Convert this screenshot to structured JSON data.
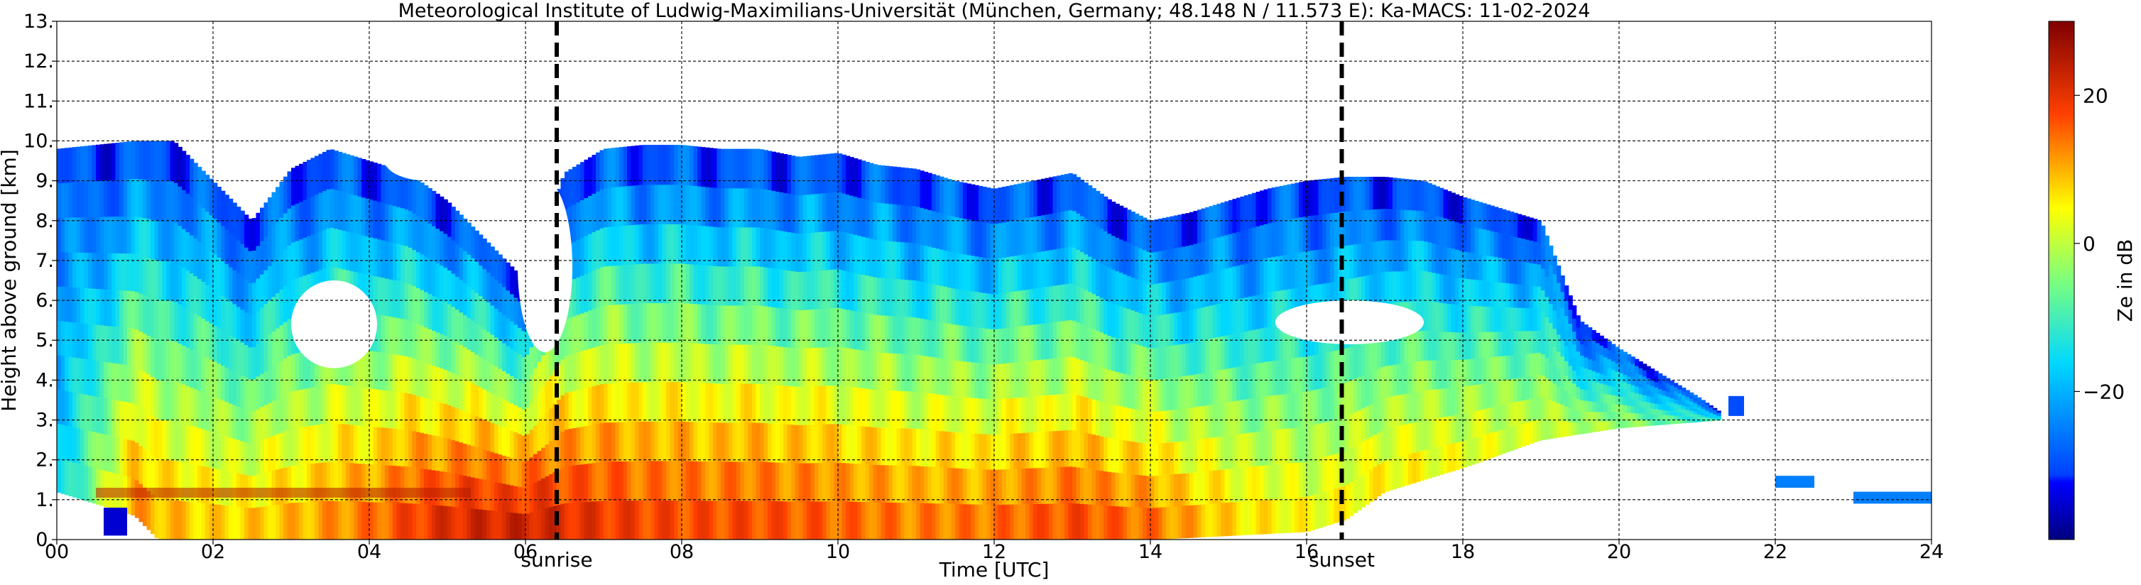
{
  "chart_data": {
    "type": "heatmap",
    "title": "Meteorological Institute of Ludwig-Maximilians-Universität (München, Germany; 48.148 N / 11.573 E):    Ka-MACS: 11-02-2024",
    "xlabel": "Time [UTC]",
    "ylabel": "Height above ground [km]",
    "xlim": [
      0,
      24
    ],
    "ylim": [
      0,
      13
    ],
    "x_ticks": [
      0,
      2,
      4,
      6,
      8,
      10,
      12,
      14,
      16,
      18,
      20,
      22,
      24
    ],
    "x_tick_labels": [
      "00",
      "02",
      "04",
      "06",
      "08",
      "10",
      "12",
      "14",
      "16",
      "18",
      "20",
      "22",
      "24"
    ],
    "y_ticks": [
      0,
      1,
      2,
      3,
      4,
      5,
      6,
      7,
      8,
      9,
      10,
      11,
      12,
      13
    ],
    "y_tick_labels": [
      "0.",
      "1.",
      "2.",
      "3.",
      "4.",
      "5.",
      "6.",
      "7.",
      "8.",
      "9.",
      "10.",
      "11.",
      "12.",
      "13."
    ],
    "grid": true,
    "markers": [
      {
        "label": "sunrise",
        "x": 6.4
      },
      {
        "label": "sunset",
        "x": 16.45
      }
    ],
    "colorbar": {
      "label": "Ze in dB",
      "range": [
        -40,
        30
      ],
      "ticks": [
        20,
        0,
        -20
      ],
      "tick_labels": [
        "20",
        "0",
        "−20"
      ]
    },
    "cloud_top_km": [
      [
        0.0,
        9.8
      ],
      [
        0.5,
        9.9
      ],
      [
        1.0,
        10.0
      ],
      [
        1.5,
        10.0
      ],
      [
        2.0,
        9.0
      ],
      [
        2.5,
        8.0
      ],
      [
        3.0,
        9.3
      ],
      [
        3.5,
        9.8
      ],
      [
        4.0,
        9.5
      ],
      [
        4.5,
        9.2
      ],
      [
        5.0,
        8.5
      ],
      [
        5.5,
        7.5
      ],
      [
        6.0,
        6.5
      ],
      [
        6.5,
        9.2
      ],
      [
        7.0,
        9.8
      ],
      [
        7.5,
        9.9
      ],
      [
        8.0,
        9.9
      ],
      [
        8.5,
        9.8
      ],
      [
        9.0,
        9.8
      ],
      [
        9.5,
        9.6
      ],
      [
        10.0,
        9.7
      ],
      [
        10.5,
        9.4
      ],
      [
        11.0,
        9.3
      ],
      [
        11.5,
        9.0
      ],
      [
        12.0,
        8.8
      ],
      [
        12.5,
        9.0
      ],
      [
        13.0,
        9.2
      ],
      [
        13.5,
        8.5
      ],
      [
        14.0,
        8.0
      ],
      [
        14.5,
        8.2
      ],
      [
        15.0,
        8.5
      ],
      [
        15.5,
        8.8
      ],
      [
        16.0,
        9.0
      ],
      [
        16.5,
        9.1
      ],
      [
        17.0,
        9.1
      ],
      [
        17.5,
        9.0
      ],
      [
        18.0,
        8.6
      ],
      [
        18.5,
        8.3
      ],
      [
        19.0,
        8.0
      ],
      [
        19.5,
        5.5
      ],
      [
        20.0,
        4.8
      ],
      [
        20.5,
        4.2
      ],
      [
        21.0,
        3.6
      ],
      [
        21.3,
        3.2
      ]
    ],
    "cloud_base_km": [
      [
        0.0,
        1.2
      ],
      [
        1.0,
        0.6
      ],
      [
        1.3,
        0.0
      ],
      [
        14.0,
        0.0
      ],
      [
        16.0,
        0.2
      ],
      [
        16.5,
        0.5
      ],
      [
        17.0,
        1.2
      ],
      [
        18.0,
        1.8
      ],
      [
        19.0,
        2.5
      ],
      [
        20.0,
        2.8
      ],
      [
        21.3,
        3.0
      ]
    ],
    "core_max_dbz": [
      [
        0.0,
        -18
      ],
      [
        1.0,
        12
      ],
      [
        2.0,
        8
      ],
      [
        3.0,
        10
      ],
      [
        4.0,
        15
      ],
      [
        5.0,
        22
      ],
      [
        6.0,
        24
      ],
      [
        7.0,
        20
      ],
      [
        8.0,
        18
      ],
      [
        9.0,
        18
      ],
      [
        10.0,
        16
      ],
      [
        11.0,
        14
      ],
      [
        12.0,
        15
      ],
      [
        13.0,
        18
      ],
      [
        14.0,
        15
      ],
      [
        15.0,
        8
      ],
      [
        16.0,
        5
      ],
      [
        17.0,
        6
      ],
      [
        18.0,
        4
      ],
      [
        19.0,
        2
      ],
      [
        20.0,
        -2
      ],
      [
        21.0,
        -10
      ]
    ],
    "features": [
      {
        "type": "clear_gap",
        "x": [
          3.0,
          4.1
        ],
        "y": [
          4.3,
          6.5
        ]
      },
      {
        "type": "clear_gap",
        "x": [
          15.6,
          17.5
        ],
        "y": [
          4.9,
          6.0
        ]
      },
      {
        "type": "clear_gap",
        "x": [
          4.2,
          5.3
        ],
        "y": [
          9.0,
          10.0
        ]
      },
      {
        "type": "clear_gap",
        "x": [
          5.9,
          6.6
        ],
        "y": [
          4.7,
          9.0
        ]
      },
      {
        "type": "isolated_echo",
        "x": [
          21.4,
          21.6
        ],
        "y": [
          3.1,
          3.6
        ],
        "dbz": -30
      },
      {
        "type": "isolated_echo",
        "x": [
          22.0,
          22.5
        ],
        "y": [
          1.3,
          1.6
        ],
        "dbz": -25
      },
      {
        "type": "isolated_echo",
        "x": [
          23.0,
          24.0
        ],
        "y": [
          0.9,
          1.2
        ],
        "dbz": -25
      },
      {
        "type": "isolated_echo",
        "x": [
          0.6,
          0.9
        ],
        "y": [
          0.1,
          0.8
        ],
        "dbz": -35
      },
      {
        "type": "melting_layer",
        "x": [
          0.5,
          5.3
        ],
        "y": [
          1.05,
          1.3
        ],
        "dbz": 15
      }
    ]
  }
}
